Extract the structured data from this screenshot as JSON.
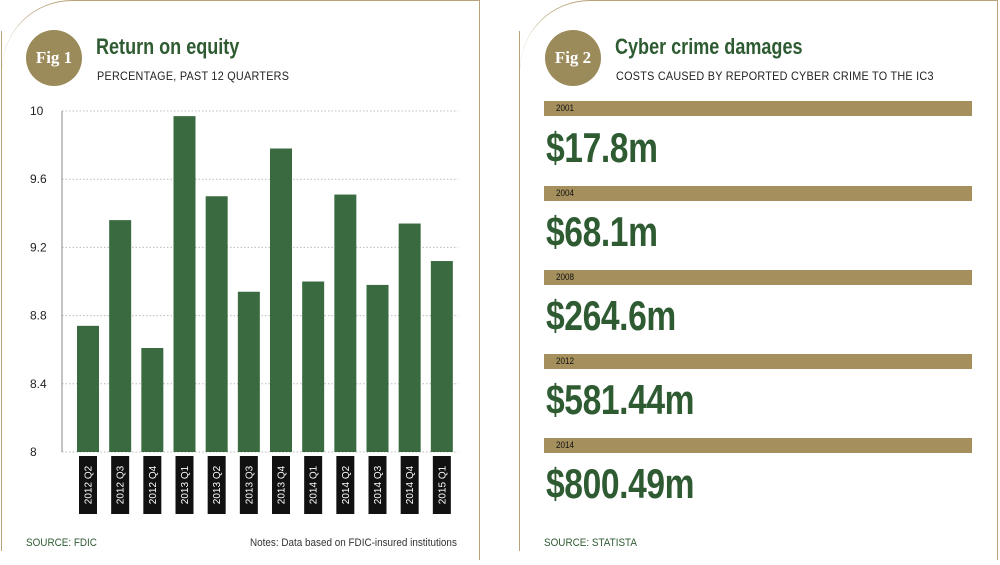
{
  "fig1": {
    "badge": "Fig 1",
    "title": "Return on equity",
    "subtitle": "PERCENTAGE, PAST 12 QUARTERS",
    "source": "SOURCE: FDIC",
    "note": "Notes: Data based on FDIC-insured institutions"
  },
  "fig2": {
    "badge": "Fig 2",
    "title": "Cyber crime damages",
    "subtitle": "COSTS CAUSED BY REPORTED CYBER CRIME TO THE IC3",
    "source": "SOURCE: STATISTA",
    "rows": [
      {
        "year": "2001",
        "value": "$17.8m"
      },
      {
        "year": "2004",
        "value": "$68.1m"
      },
      {
        "year": "2008",
        "value": "$264.6m"
      },
      {
        "year": "2012",
        "value": "$581.44m"
      },
      {
        "year": "2014",
        "value": "$800.49m"
      }
    ]
  },
  "colors": {
    "bar": "#3a6b40",
    "accent": "#9b8a5a",
    "title": "#2e5b32",
    "grid": "#bbbbbb"
  },
  "chart_data": [
    {
      "type": "bar",
      "title": "Return on equity",
      "subtitle": "PERCENTAGE, PAST 12 QUARTERS",
      "categories": [
        "2012 Q2",
        "2012 Q3",
        "2012 Q4",
        "2013 Q1",
        "2013 Q2",
        "2013 Q3",
        "2013 Q4",
        "2014 Q1",
        "2014 Q2",
        "2014 Q3",
        "2014 Q4",
        "2015 Q1"
      ],
      "values": [
        8.74,
        9.36,
        8.61,
        9.97,
        9.5,
        8.94,
        9.78,
        9.0,
        9.51,
        8.98,
        9.34,
        9.12
      ],
      "ylim": [
        8,
        10
      ],
      "yticks": [
        "8",
        "8.4",
        "8.8",
        "9.2",
        "9.6",
        "10"
      ],
      "ytick_values": [
        8,
        8.4,
        8.8,
        9.2,
        9.6,
        10
      ],
      "grid": true
    },
    {
      "type": "table",
      "title": "Cyber crime damages",
      "rows": [
        [
          "2001",
          "$17.8m"
        ],
        [
          "2004",
          "$68.1m"
        ],
        [
          "2008",
          "$264.6m"
        ],
        [
          "2012",
          "$581.44m"
        ],
        [
          "2014",
          "$800.49m"
        ]
      ]
    }
  ]
}
